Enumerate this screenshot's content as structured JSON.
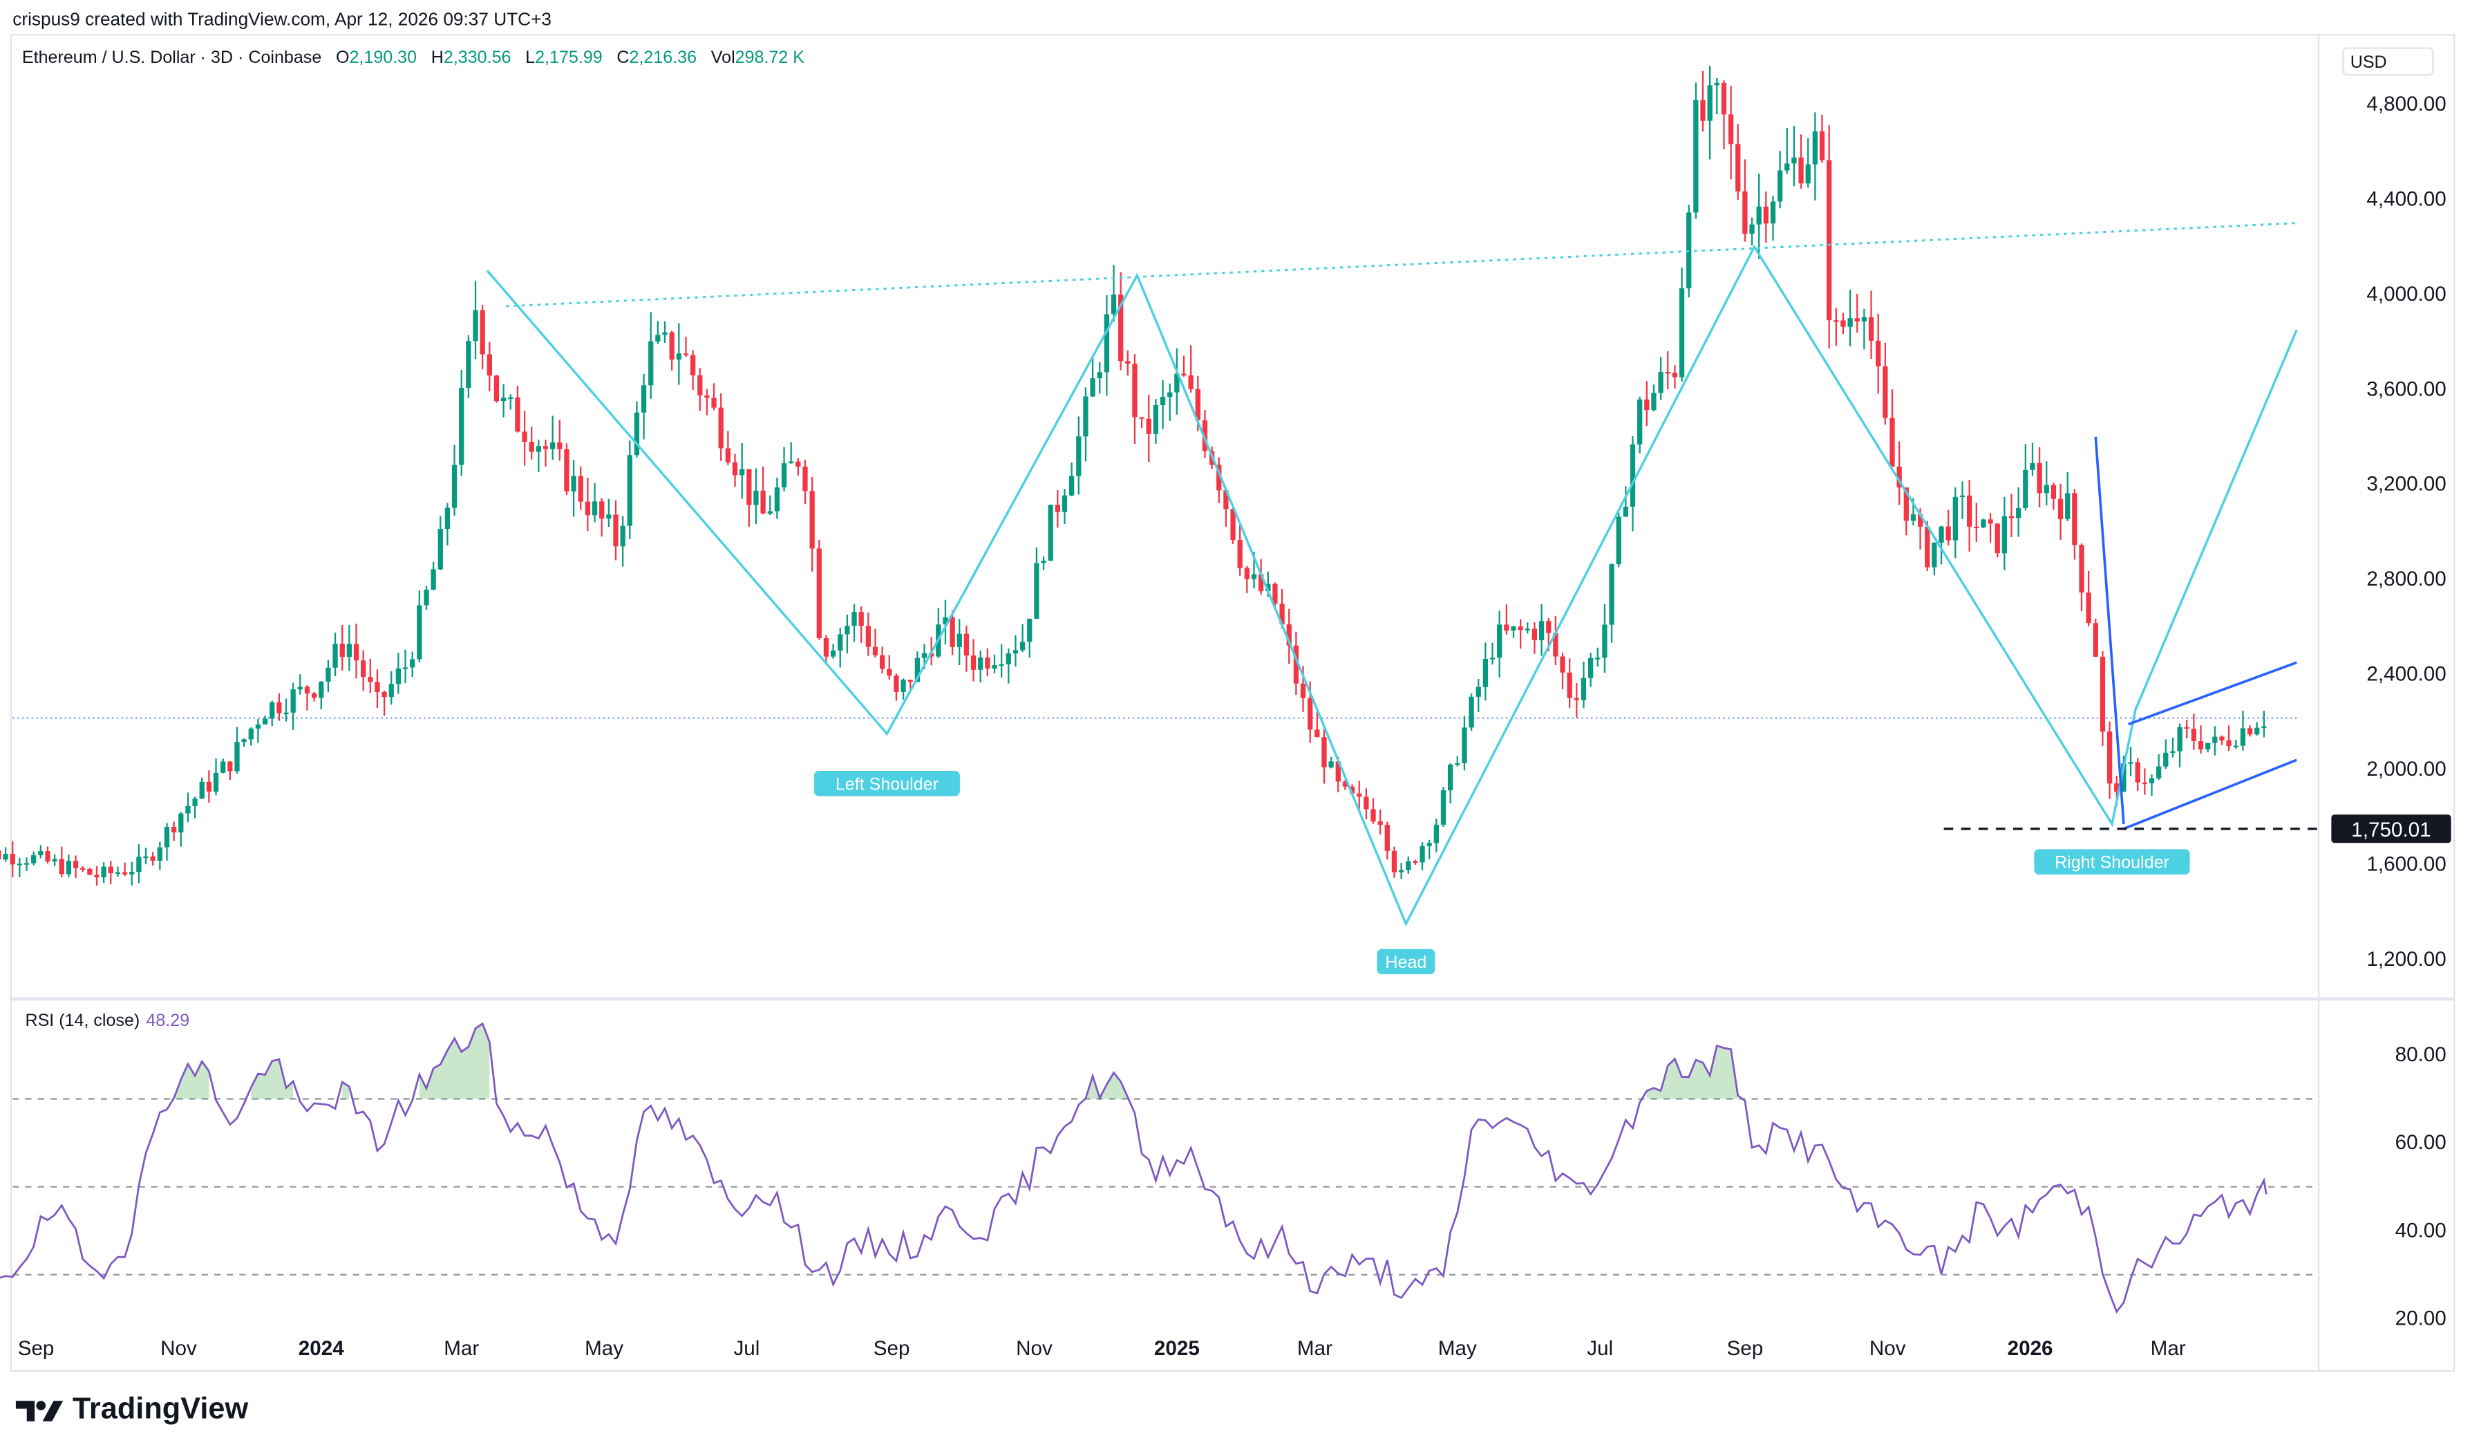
{
  "credit": "crispus9 created with TradingView.com, Apr 12, 2026 09:37 UTC+3",
  "legend": {
    "symbol": "Ethereum / U.S. Dollar · 3D · Coinbase",
    "o_label": "O",
    "o": "2,190.30",
    "h_label": "H",
    "h": "2,330.56",
    "l_label": "L",
    "l": "2,175.99",
    "c_label": "C",
    "c": "2,216.36",
    "vol_label": "Vol",
    "vol": "298.72 K"
  },
  "currency_button": "USD",
  "rsi_legend": {
    "label": "RSI (14, close)",
    "value": "48.29"
  },
  "brand": "TradingView",
  "colors": {
    "up": "#089981",
    "down": "#f23645",
    "pattern": "#4dd0e1",
    "channel": "#2962ff",
    "rsi": "#7e57c2"
  },
  "chart_data": [
    {
      "type": "candlestick",
      "title": "Ethereum / U.S. Dollar · 3D · Coinbase",
      "ylim": [
        1040,
        5080
      ],
      "yticks": [
        1200,
        1600,
        2000,
        2400,
        2800,
        3200,
        3600,
        4000,
        4400,
        4800
      ],
      "ytick_labels": [
        "1,200.00",
        "1,600.00",
        "2,000.00",
        "2,400.00",
        "2,800.00",
        "3,200.00",
        "3,600.00",
        "4,000.00",
        "4,400.00",
        "4,800.00"
      ],
      "xticks": [
        "Sep",
        "Nov",
        "2024",
        "Mar",
        "May",
        "Jul",
        "Sep",
        "Nov",
        "2025",
        "Mar",
        "May",
        "Jul",
        "Sep",
        "Nov",
        "2026",
        "Mar"
      ],
      "xtick_positions": [
        "2023-09-01",
        "2023-11-01",
        "2024-01-01",
        "2024-03-01",
        "2024-05-01",
        "2024-07-01",
        "2024-09-01",
        "2024-11-01",
        "2025-01-01",
        "2025-03-01",
        "2025-05-01",
        "2025-07-01",
        "2025-09-01",
        "2025-11-01",
        "2026-01-01",
        "2026-03-01"
      ],
      "bold_xticks": [
        "2024",
        "2025",
        "2026"
      ],
      "current_price": 2216.36,
      "support_level": 1750.01,
      "support_label": "1,750.01",
      "trend_points": [
        [
          "2023-08-01",
          1660
        ],
        [
          "2023-09-01",
          1630
        ],
        [
          "2023-10-01",
          1550
        ],
        [
          "2023-10-20",
          1600
        ],
        [
          "2023-11-05",
          1820
        ],
        [
          "2023-11-25",
          2020
        ],
        [
          "2023-12-10",
          2250
        ],
        [
          "2024-01-01",
          2350
        ],
        [
          "2024-01-15",
          2550
        ],
        [
          "2024-01-28",
          2270
        ],
        [
          "2024-02-10",
          2450
        ],
        [
          "2024-02-25",
          2980
        ],
        [
          "2024-03-10",
          3950
        ],
        [
          "2024-03-20",
          3540
        ],
        [
          "2024-04-05",
          3400
        ],
        [
          "2024-04-25",
          3150
        ],
        [
          "2024-05-10",
          2950
        ],
        [
          "2024-05-22",
          3750
        ],
        [
          "2024-06-05",
          3780
        ],
        [
          "2024-06-25",
          3400
        ],
        [
          "2024-07-10",
          3050
        ],
        [
          "2024-07-28",
          3350
        ],
        [
          "2024-08-05",
          2500
        ],
        [
          "2024-08-20",
          2650
        ],
        [
          "2024-09-06",
          2300
        ],
        [
          "2024-09-25",
          2600
        ],
        [
          "2024-10-10",
          2450
        ],
        [
          "2024-10-30",
          2550
        ],
        [
          "2024-11-08",
          2950
        ],
        [
          "2024-11-25",
          3450
        ],
        [
          "2024-12-07",
          3950
        ],
        [
          "2024-12-20",
          3400
        ],
        [
          "2025-01-06",
          3650
        ],
        [
          "2025-01-20",
          3300
        ],
        [
          "2025-02-03",
          2800
        ],
        [
          "2025-02-15",
          2700
        ],
        [
          "2025-03-01",
          2200
        ],
        [
          "2025-03-15",
          1900
        ],
        [
          "2025-04-01",
          1800
        ],
        [
          "2025-04-09",
          1530
        ],
        [
          "2025-04-25",
          1780
        ],
        [
          "2025-05-08",
          2200
        ],
        [
          "2025-05-20",
          2550
        ],
        [
          "2025-06-10",
          2600
        ],
        [
          "2025-06-22",
          2300
        ],
        [
          "2025-07-05",
          2550
        ],
        [
          "2025-07-20",
          3500
        ],
        [
          "2025-08-05",
          3700
        ],
        [
          "2025-08-13",
          4700
        ],
        [
          "2025-08-24",
          4800
        ],
        [
          "2025-09-05",
          4300
        ],
        [
          "2025-09-20",
          4500
        ],
        [
          "2025-10-06",
          4650
        ],
        [
          "2025-10-11",
          3800
        ],
        [
          "2025-10-25",
          4000
        ],
        [
          "2025-11-05",
          3300
        ],
        [
          "2025-11-20",
          2900
        ],
        [
          "2025-12-05",
          3100
        ],
        [
          "2025-12-20",
          2950
        ],
        [
          "2026-01-05",
          3250
        ],
        [
          "2026-01-20",
          3100
        ],
        [
          "2026-02-01",
          2500
        ],
        [
          "2026-02-06",
          1900
        ],
        [
          "2026-02-15",
          2000
        ],
        [
          "2026-02-25",
          1950
        ],
        [
          "2026-03-10",
          2150
        ],
        [
          "2026-03-25",
          2100
        ],
        [
          "2026-04-12",
          2216
        ]
      ],
      "annotations": [
        {
          "text": "Left Shoulder",
          "date": "2024-08-30",
          "price": 2100
        },
        {
          "text": "Head",
          "date": "2025-04-09",
          "price": 1350
        },
        {
          "text": "Right Shoulder",
          "date": "2026-02-05",
          "price": 1770
        }
      ],
      "neckline": [
        [
          "2024-03-20",
          3950
        ],
        [
          "2026-04-25",
          4300
        ]
      ],
      "hs_path": [
        [
          "2024-03-12",
          4100
        ],
        [
          "2024-08-30",
          2150
        ],
        [
          "2024-12-15",
          4080
        ],
        [
          "2025-04-09",
          1350
        ],
        [
          "2025-09-05",
          4200
        ],
        [
          "2026-02-05",
          1770
        ],
        [
          "2026-02-15",
          2250
        ],
        [
          "2026-04-25",
          3850
        ]
      ],
      "channel": {
        "upper": [
          [
            "2026-02-12",
            2190
          ],
          [
            "2026-04-25",
            2450
          ]
        ],
        "lower": [
          [
            "2026-02-10",
            1750
          ],
          [
            "2026-04-25",
            2040
          ]
        ],
        "pole": [
          [
            "2026-01-29",
            3400
          ],
          [
            "2026-02-10",
            1770
          ]
        ]
      }
    },
    {
      "type": "line",
      "title": "RSI (14, close)",
      "ylim": [
        16,
        92
      ],
      "yticks": [
        20,
        40,
        60,
        80
      ],
      "ytick_labels": [
        "20.00",
        "40.00",
        "60.00",
        "80.00"
      ],
      "bands": [
        30,
        50,
        70
      ],
      "last_value": 48.29,
      "points": [
        [
          "2023-08-01",
          34
        ],
        [
          "2023-08-20",
          30
        ],
        [
          "2023-09-10",
          45
        ],
        [
          "2023-09-25",
          30
        ],
        [
          "2023-10-10",
          38
        ],
        [
          "2023-10-25",
          70
        ],
        [
          "2023-11-10",
          78
        ],
        [
          "2023-11-25",
          64
        ],
        [
          "2023-12-10",
          80
        ],
        [
          "2023-12-25",
          66
        ],
        [
          "2024-01-10",
          72
        ],
        [
          "2024-01-25",
          60
        ],
        [
          "2024-02-10",
          72
        ],
        [
          "2024-02-25",
          80
        ],
        [
          "2024-03-10",
          87
        ],
        [
          "2024-03-20",
          62
        ],
        [
          "2024-04-05",
          64
        ],
        [
          "2024-04-20",
          46
        ],
        [
          "2024-05-05",
          38
        ],
        [
          "2024-05-20",
          68
        ],
        [
          "2024-06-05",
          62
        ],
        [
          "2024-06-25",
          45
        ],
        [
          "2024-07-10",
          50
        ],
        [
          "2024-07-25",
          36
        ],
        [
          "2024-08-05",
          30
        ],
        [
          "2024-08-20",
          37
        ],
        [
          "2024-09-10",
          36
        ],
        [
          "2024-09-25",
          44
        ],
        [
          "2024-10-10",
          40
        ],
        [
          "2024-10-25",
          48
        ],
        [
          "2024-11-10",
          63
        ],
        [
          "2024-11-25",
          72
        ],
        [
          "2024-12-07",
          75
        ],
        [
          "2024-12-20",
          54
        ],
        [
          "2025-01-06",
          58
        ],
        [
          "2025-01-20",
          46
        ],
        [
          "2025-02-03",
          34
        ],
        [
          "2025-02-15",
          38
        ],
        [
          "2025-03-01",
          28
        ],
        [
          "2025-03-15",
          32
        ],
        [
          "2025-04-01",
          31
        ],
        [
          "2025-04-09",
          25
        ],
        [
          "2025-04-25",
          30
        ],
        [
          "2025-05-08",
          64
        ],
        [
          "2025-05-20",
          66
        ],
        [
          "2025-06-10",
          56
        ],
        [
          "2025-06-22",
          48
        ],
        [
          "2025-07-05",
          56
        ],
        [
          "2025-07-20",
          72
        ],
        [
          "2025-08-05",
          78
        ],
        [
          "2025-08-13",
          76
        ],
        [
          "2025-08-24",
          82
        ],
        [
          "2025-09-05",
          60
        ],
        [
          "2025-09-20",
          62
        ],
        [
          "2025-10-06",
          56
        ],
        [
          "2025-10-20",
          44
        ],
        [
          "2025-11-05",
          40
        ],
        [
          "2025-11-25",
          32
        ],
        [
          "2025-12-10",
          44
        ],
        [
          "2025-12-25",
          40
        ],
        [
          "2026-01-10",
          50
        ],
        [
          "2026-01-25",
          46
        ],
        [
          "2026-02-06",
          24
        ],
        [
          "2026-02-20",
          33
        ],
        [
          "2026-03-05",
          38
        ],
        [
          "2026-03-20",
          45
        ],
        [
          "2026-04-12",
          48.29
        ]
      ]
    }
  ]
}
